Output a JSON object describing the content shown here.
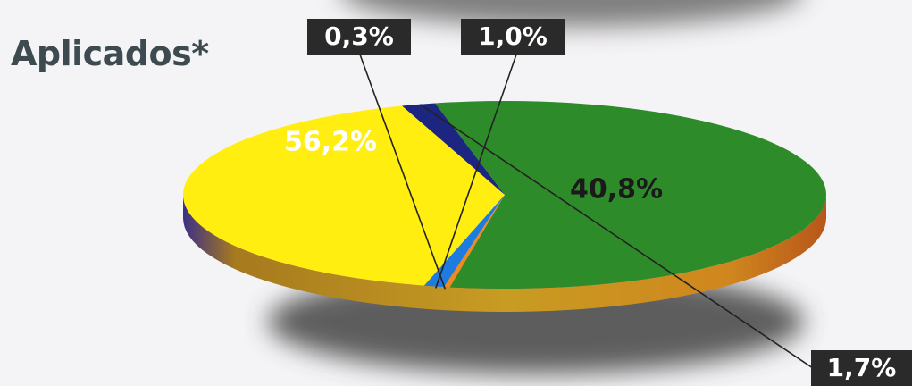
{
  "chart_data": {
    "type": "pie",
    "title": "Aplicados*",
    "slices": [
      {
        "label": "56,2%",
        "value": 56.2,
        "color": "#2e8b2a"
      },
      {
        "label": "0,3%",
        "value": 0.3,
        "color": "#f08a1c"
      },
      {
        "label": "1,0%",
        "value": 1.0,
        "color": "#1e7be0"
      },
      {
        "label": "40,8%",
        "value": 40.8,
        "color": "#ffee10"
      },
      {
        "label": "1,7%",
        "value": 1.7,
        "color": "#1c2580"
      }
    ],
    "colors": {
      "label_box": "#2a2a2a",
      "label_text_on_box": "#ffffff",
      "label_text_on_green": "#ffffff",
      "label_text_on_yellow": "#1a1a1a",
      "side_shade": "#c46a14",
      "shadow": "#4d4d4d"
    }
  }
}
